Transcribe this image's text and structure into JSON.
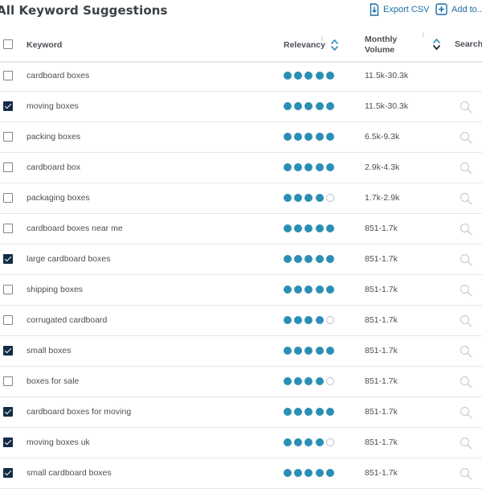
{
  "header": {
    "title": "All Keyword Suggestions",
    "export_label": "Export CSV",
    "add_label": "Add to..."
  },
  "columns": {
    "keyword": "Keyword",
    "relevancy": "Relevancy",
    "info_glyph": "i",
    "monthly_volume_line1": "Monthly",
    "monthly_volume_line2": "Volume",
    "search": "Search"
  },
  "colors": {
    "accent": "#1d6fa5",
    "relevancy_dot": "#2b8fb5",
    "checkbox_checked": "#132b45"
  },
  "header_checkbox_checked": false,
  "rows": [
    {
      "keyword": "cardboard boxes",
      "relevancy": 5,
      "volume": "11.5k-30.3k",
      "checked": false,
      "search_icon": false
    },
    {
      "keyword": "moving boxes",
      "relevancy": 5,
      "volume": "11.5k-30.3k",
      "checked": true,
      "search_icon": true
    },
    {
      "keyword": "packing boxes",
      "relevancy": 5,
      "volume": "6.5k-9.3k",
      "checked": false,
      "search_icon": true
    },
    {
      "keyword": "cardboard box",
      "relevancy": 5,
      "volume": "2.9k-4.3k",
      "checked": false,
      "search_icon": true
    },
    {
      "keyword": "packaging boxes",
      "relevancy": 4,
      "volume": "1.7k-2.9k",
      "checked": false,
      "search_icon": true
    },
    {
      "keyword": "cardboard boxes near me",
      "relevancy": 5,
      "volume": "851-1.7k",
      "checked": false,
      "search_icon": true
    },
    {
      "keyword": "large cardboard boxes",
      "relevancy": 5,
      "volume": "851-1.7k",
      "checked": true,
      "search_icon": true
    },
    {
      "keyword": "shipping boxes",
      "relevancy": 5,
      "volume": "851-1.7k",
      "checked": false,
      "search_icon": true
    },
    {
      "keyword": "corrugated cardboard",
      "relevancy": 4,
      "volume": "851-1.7k",
      "checked": false,
      "search_icon": true
    },
    {
      "keyword": "small boxes",
      "relevancy": 5,
      "volume": "851-1.7k",
      "checked": true,
      "search_icon": true
    },
    {
      "keyword": "boxes for sale",
      "relevancy": 4,
      "volume": "851-1.7k",
      "checked": false,
      "search_icon": true
    },
    {
      "keyword": "cardboard boxes for moving",
      "relevancy": 5,
      "volume": "851-1.7k",
      "checked": true,
      "search_icon": true
    },
    {
      "keyword": "moving boxes uk",
      "relevancy": 4,
      "volume": "851-1.7k",
      "checked": true,
      "search_icon": true
    },
    {
      "keyword": "small cardboard boxes",
      "relevancy": 5,
      "volume": "851-1.7k",
      "checked": true,
      "search_icon": true
    }
  ]
}
